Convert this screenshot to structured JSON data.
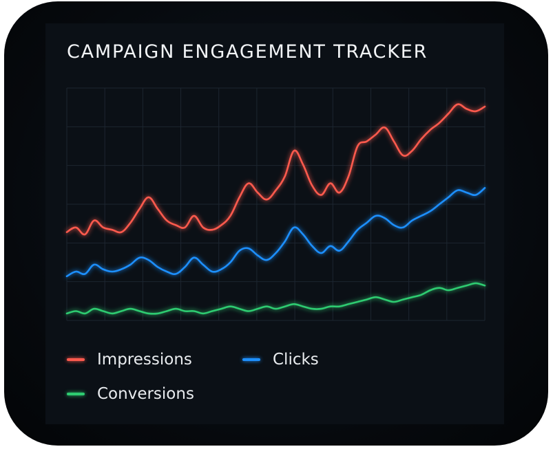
{
  "title": "CAMPAIGN ENGAGEMENT TRACKER",
  "chart_data": {
    "type": "line",
    "title": "CAMPAIGN ENGAGEMENT TRACKER",
    "xlabel": "",
    "ylabel": "",
    "grid": true,
    "legend_position": "bottom",
    "x": [
      0,
      1,
      2,
      3,
      4,
      5,
      6,
      7,
      8,
      9,
      10,
      11,
      12,
      13,
      14,
      15,
      16,
      17,
      18,
      19,
      20,
      21,
      22,
      23,
      24,
      25,
      26,
      27,
      28,
      29,
      30,
      31,
      32,
      33,
      34,
      35,
      36,
      37,
      38,
      39,
      40,
      41,
      42,
      43,
      44,
      45,
      46
    ],
    "xlim": [
      0,
      46
    ],
    "ylim": [
      0,
      100
    ],
    "series": [
      {
        "name": "Impressions",
        "color": "#ff5a4e",
        "values": [
          38,
          40,
          37,
          43,
          40,
          39,
          38,
          42,
          48,
          53,
          48,
          43,
          41,
          40,
          45,
          40,
          39,
          41,
          45,
          53,
          59,
          55,
          52,
          56,
          62,
          73,
          67,
          58,
          54,
          59,
          55,
          62,
          75,
          77,
          80,
          83,
          77,
          71,
          73,
          78,
          82,
          85,
          89,
          93,
          91,
          90,
          92
        ]
      },
      {
        "name": "Clicks",
        "color": "#1e90ff",
        "values": [
          19,
          21,
          20,
          24,
          22,
          21,
          22,
          24,
          27,
          26,
          23,
          21,
          20,
          23,
          27,
          24,
          21,
          22,
          25,
          30,
          31,
          28,
          26,
          29,
          34,
          40,
          37,
          32,
          29,
          32,
          30,
          34,
          39,
          42,
          45,
          44,
          41,
          40,
          43,
          45,
          47,
          50,
          53,
          56,
          55,
          54,
          57
        ]
      },
      {
        "name": "Conversions",
        "color": "#2ecc71",
        "values": [
          3,
          4,
          3,
          5,
          4,
          3,
          4,
          5,
          4,
          3,
          3,
          4,
          5,
          4,
          4,
          3,
          4,
          5,
          6,
          5,
          4,
          5,
          6,
          5,
          6,
          7,
          6,
          5,
          5,
          6,
          6,
          7,
          8,
          9,
          10,
          9,
          8,
          9,
          10,
          11,
          13,
          14,
          13,
          14,
          15,
          16,
          15
        ]
      }
    ]
  }
}
